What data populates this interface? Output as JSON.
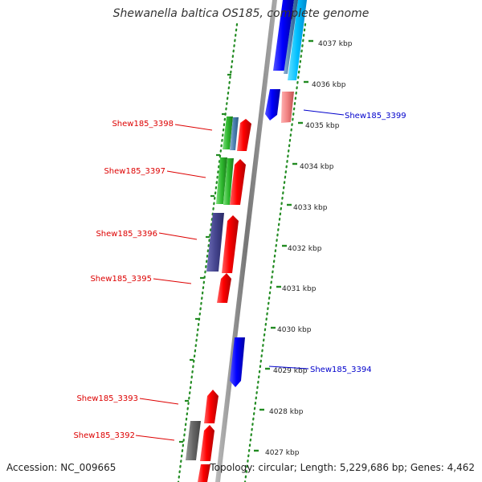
{
  "title": "Shewanella baltica OS185, complete genome",
  "footer": {
    "accession": "Accession: NC_009665",
    "summary": "Topology: circular; Length: 5,229,686 bp; Genes: 4,462"
  },
  "ticks": [
    "4037 kbp",
    "4036 kbp",
    "4035 kbp",
    "4034 kbp",
    "4033 kbp",
    "4032 kbp",
    "4031 kbp",
    "4030 kbp",
    "4029 kbp",
    "4028 kbp",
    "4027 kbp"
  ],
  "gene_labels": [
    {
      "text": "Shew185_3399",
      "color": "#0000cc"
    },
    {
      "text": "Shew185_3398",
      "color": "#dd0000"
    },
    {
      "text": "Shew185_3397",
      "color": "#dd0000"
    },
    {
      "text": "Shew185_3396",
      "color": "#dd0000"
    },
    {
      "text": "Shew185_3395",
      "color": "#dd0000"
    },
    {
      "text": "Shew185_3394",
      "color": "#0000cc"
    },
    {
      "text": "Shew185_3393",
      "color": "#dd0000"
    },
    {
      "text": "Shew185_3392",
      "color": "#dd0000"
    }
  ],
  "colors": {
    "backbone": "#888888",
    "ring": "#228b22",
    "forward_gene": "#ff0000",
    "reverse_gene": "#0000ff"
  }
}
